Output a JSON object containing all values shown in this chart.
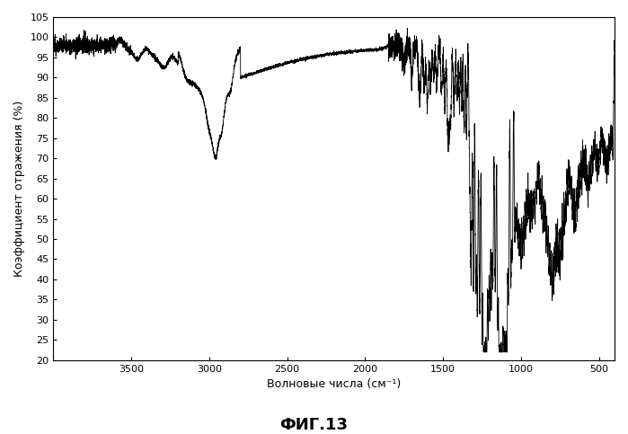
{
  "title": "",
  "xlabel": "Волновые числа (см⁻¹)",
  "ylabel": "Коэффициент отражения (%)",
  "fig_caption": "ФИГ.13",
  "xmin": 4000,
  "xmax": 400,
  "ymin": 20,
  "ymax": 105,
  "xticks": [
    3500,
    3000,
    2500,
    2000,
    1500,
    1000,
    500
  ],
  "yticks": [
    20,
    25,
    30,
    35,
    40,
    45,
    50,
    55,
    60,
    65,
    70,
    75,
    80,
    85,
    90,
    95,
    100,
    105
  ],
  "line_color": "#000000",
  "background_color": "#ffffff"
}
